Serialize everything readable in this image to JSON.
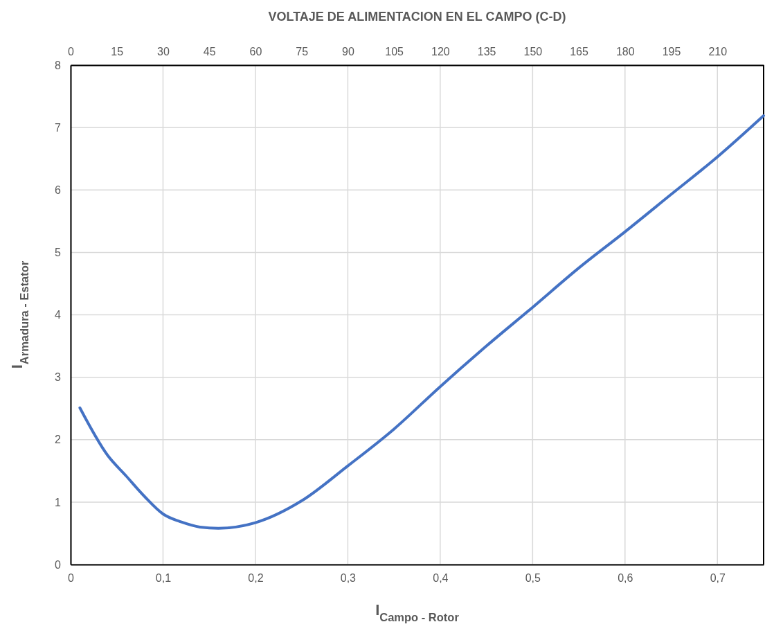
{
  "chart_data": {
    "type": "line",
    "x2label": "VOLTAJE DE ALIMENTACION EN EL CAMPO (C-D)",
    "xlabel": "I$_{Campo - Rotor}$",
    "ylabel": "I$_{Armadura - Estator}$",
    "x": [
      0.01,
      0.04,
      0.06,
      0.08,
      0.1,
      0.12,
      0.14,
      0.16,
      0.2,
      0.25,
      0.3,
      0.35,
      0.4,
      0.45,
      0.5,
      0.55,
      0.6,
      0.65,
      0.7,
      0.75
    ],
    "series": [
      {
        "color": "#4472c4",
        "values": [
          2.51,
          1.75,
          1.42,
          1.09,
          0.81,
          0.68,
          0.6,
          0.58,
          0.67,
          1.02,
          1.58,
          2.17,
          2.85,
          3.5,
          4.12,
          4.75,
          5.33,
          5.93,
          6.53,
          7.19
        ]
      }
    ],
    "xlim": [
      0,
      0.75
    ],
    "xticks": [
      0,
      {
        "value": 0.1,
        "label": "0,1"
      },
      {
        "value": 0.2,
        "label": "0,2"
      },
      {
        "value": 0.3,
        "label": "0,3"
      },
      {
        "value": 0.4,
        "label": "0,4"
      },
      {
        "value": 0.5,
        "label": "0,5"
      },
      {
        "value": 0.6,
        "label": "0,6"
      },
      {
        "value": 0.7,
        "label": "0,7"
      }
    ],
    "x2lim": [
      0,
      225
    ],
    "x2ticks": [
      0,
      15,
      30,
      45,
      60,
      75,
      90,
      105,
      120,
      135,
      150,
      165,
      180,
      195,
      210
    ],
    "ylim": [
      0,
      8
    ],
    "yticks": [
      0,
      1,
      2,
      3,
      4,
      5,
      6,
      7,
      8
    ],
    "grid": true,
    "marker": "none",
    "line_style": "solid"
  }
}
